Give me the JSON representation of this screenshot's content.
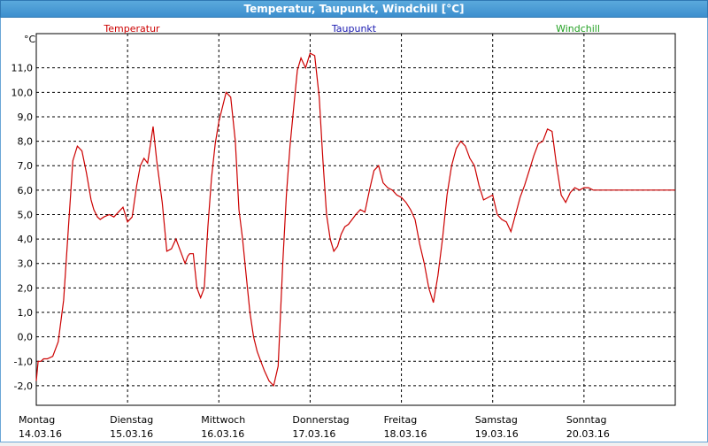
{
  "window": {
    "title": "Temperatur, Taupunkt, Windchill [°C]"
  },
  "colors": {
    "temperatur": "#cc0000",
    "taupunkt": "#1a1ab0",
    "windchill": "#22a022",
    "grid": "#000000"
  },
  "chart_data": {
    "type": "line",
    "title": "Temperatur, Taupunkt, Windchill [°C]",
    "unit_label": "°C",
    "ylim": [
      -2.8,
      12.4
    ],
    "y_ticks": [
      "-2,0",
      "-1,0",
      "0,0",
      "1,0",
      "2,0",
      "3,0",
      "4,0",
      "5,0",
      "6,0",
      "7,0",
      "8,0",
      "9,0",
      "10,0",
      "11,0"
    ],
    "y_tick_values": [
      -2,
      -1,
      0,
      1,
      2,
      3,
      4,
      5,
      6,
      7,
      8,
      9,
      10,
      11
    ],
    "xlim": [
      0,
      7
    ],
    "days": [
      {
        "name": "Montag",
        "date": "14.03.16"
      },
      {
        "name": "Dienstag",
        "date": "15.03.16"
      },
      {
        "name": "Mittwoch",
        "date": "16.03.16"
      },
      {
        "name": "Donnerstag",
        "date": "17.03.16"
      },
      {
        "name": "Freitag",
        "date": "18.03.16"
      },
      {
        "name": "Samstag",
        "date": "19.03.16"
      },
      {
        "name": "Sonntag",
        "date": "20.03.16"
      }
    ],
    "legend": [
      "Temperatur",
      "Taupunkt",
      "Windchill"
    ],
    "grid": true,
    "series": [
      {
        "name": "Temperatur",
        "x": [
          0,
          0.02,
          0.05,
          0.08,
          0.12,
          0.18,
          0.24,
          0.3,
          0.34,
          0.4,
          0.45,
          0.5,
          0.55,
          0.6,
          0.63,
          0.67,
          0.7,
          0.74,
          0.8,
          0.85,
          0.9,
          0.95,
          1.0,
          1.05,
          1.1,
          1.14,
          1.18,
          1.22,
          1.28,
          1.32,
          1.38,
          1.43,
          1.48,
          1.53,
          1.58,
          1.63,
          1.66,
          1.68,
          1.72,
          1.76,
          1.8,
          1.84,
          1.88,
          1.92,
          1.96,
          2.0,
          2.04,
          2.08,
          2.13,
          2.18,
          2.22,
          2.26,
          2.3,
          2.34,
          2.38,
          2.42,
          2.46,
          2.5,
          2.55,
          2.6,
          2.65,
          2.7,
          2.74,
          2.78,
          2.82,
          2.86,
          2.9,
          2.95,
          3.0,
          3.05,
          3.1,
          3.14,
          3.18,
          3.22,
          3.26,
          3.3,
          3.34,
          3.38,
          3.42,
          3.46,
          3.5,
          3.55,
          3.6,
          3.65,
          3.7,
          3.75,
          3.8,
          3.85,
          3.9,
          3.95,
          4.0,
          4.05,
          4.1,
          4.15,
          4.2,
          4.25,
          4.3,
          4.35,
          4.4,
          4.45,
          4.5,
          4.55,
          4.6,
          4.65,
          4.7,
          4.75,
          4.8,
          4.85,
          4.9,
          4.95,
          5.0,
          5.05,
          5.1,
          5.15,
          5.2,
          5.25,
          5.3,
          5.35,
          5.4,
          5.45,
          5.5,
          5.55,
          5.6,
          5.65,
          5.7,
          5.75,
          5.8,
          5.85,
          5.9,
          5.95,
          6.0,
          6.05,
          6.1,
          6.15,
          6.2,
          6.25,
          6.3,
          6.35,
          6.4,
          6.45,
          6.5,
          6.55,
          6.6,
          6.65,
          6.7,
          6.75,
          6.8,
          6.85,
          6.9,
          6.95,
          7.0
        ],
        "y": [
          -1.8,
          -1.0,
          -1.0,
          -0.9,
          -0.9,
          -0.8,
          -0.2,
          1.5,
          3.8,
          7.2,
          7.8,
          7.6,
          6.7,
          5.6,
          5.2,
          4.9,
          4.8,
          4.9,
          5.0,
          4.9,
          5.1,
          5.3,
          4.7,
          4.9,
          6.2,
          7.0,
          7.3,
          7.1,
          8.6,
          7.2,
          5.5,
          3.5,
          3.6,
          4.0,
          3.5,
          3.0,
          3.3,
          3.4,
          3.4,
          2.0,
          1.6,
          2.0,
          4.5,
          6.5,
          7.9,
          8.8,
          9.4,
          10.0,
          9.8,
          8.0,
          5.2,
          4.0,
          2.5,
          1.0,
          0.0,
          -0.6,
          -1.0,
          -1.4,
          -1.8,
          -2.0,
          -1.2,
          3.0,
          5.8,
          7.8,
          9.4,
          10.9,
          11.4,
          11.0,
          11.6,
          11.5,
          9.8,
          7.2,
          5.0,
          4.0,
          3.5,
          3.7,
          4.2,
          4.5,
          4.6,
          4.8,
          5.0,
          5.2,
          5.1,
          6.0,
          6.8,
          7.0,
          6.3,
          6.1,
          6.0,
          5.8,
          5.7,
          5.5,
          5.2,
          4.8,
          3.8,
          3.0,
          2.0,
          1.4,
          2.5,
          4.0,
          5.8,
          7.0,
          7.7,
          8.0,
          7.8,
          7.3,
          7.0,
          6.2,
          5.6,
          5.7,
          5.8,
          5.0,
          4.8,
          4.7,
          4.3,
          5.0,
          5.7,
          6.2,
          6.8,
          7.4,
          7.9,
          8.0,
          8.5,
          8.4,
          7.0,
          5.8,
          5.5,
          5.9,
          6.1,
          6.0,
          6.1,
          6.1,
          6.0,
          6.0,
          6.0,
          6.0,
          6.0,
          6.0,
          6.0,
          6.0,
          6.0,
          6.0,
          6.0,
          6.0,
          6.0,
          6.0,
          6.0,
          6.0,
          6.0,
          6.0,
          6.0
        ]
      }
    ]
  }
}
